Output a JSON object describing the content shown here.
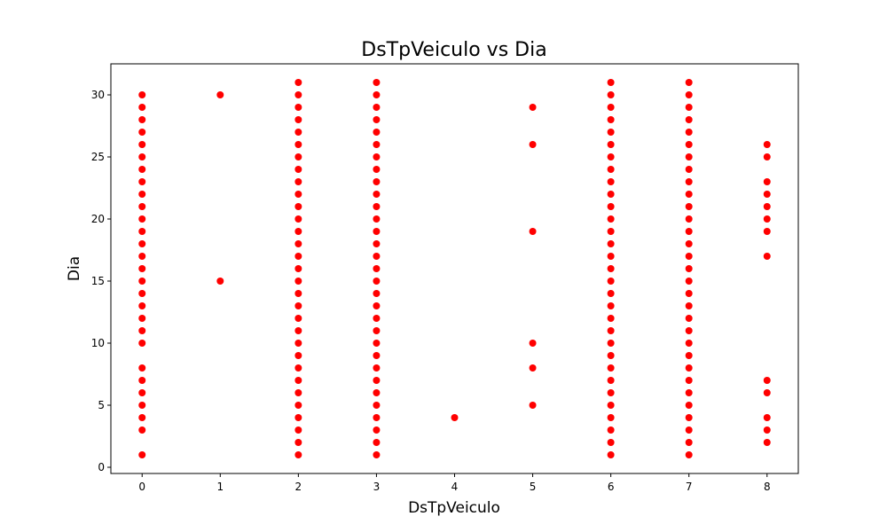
{
  "chart_data": {
    "type": "scatter",
    "title": "DsTpVeiculo vs Dia",
    "xlabel": "DsTpVeiculo",
    "ylabel": "Dia",
    "xlim": [
      -0.4,
      8.4
    ],
    "ylim": [
      -0.5,
      32.5
    ],
    "xticks": [
      0,
      1,
      2,
      3,
      4,
      5,
      6,
      7,
      8
    ],
    "yticks": [
      0,
      5,
      10,
      15,
      20,
      25,
      30
    ],
    "grid": false,
    "marker_color": "#ff0000",
    "series": [
      {
        "points": [
          [
            0,
            1
          ],
          [
            0,
            3
          ],
          [
            0,
            4
          ],
          [
            0,
            5
          ],
          [
            0,
            6
          ],
          [
            0,
            7
          ],
          [
            0,
            8
          ],
          [
            0,
            10
          ],
          [
            0,
            11
          ],
          [
            0,
            12
          ],
          [
            0,
            13
          ],
          [
            0,
            14
          ],
          [
            0,
            15
          ],
          [
            0,
            16
          ],
          [
            0,
            17
          ],
          [
            0,
            18
          ],
          [
            0,
            19
          ],
          [
            0,
            20
          ],
          [
            0,
            21
          ],
          [
            0,
            22
          ],
          [
            0,
            23
          ],
          [
            0,
            24
          ],
          [
            0,
            25
          ],
          [
            0,
            26
          ],
          [
            0,
            27
          ],
          [
            0,
            28
          ],
          [
            0,
            29
          ],
          [
            0,
            30
          ],
          [
            1,
            15
          ],
          [
            1,
            30
          ],
          [
            2,
            1
          ],
          [
            2,
            2
          ],
          [
            2,
            3
          ],
          [
            2,
            4
          ],
          [
            2,
            5
          ],
          [
            2,
            6
          ],
          [
            2,
            7
          ],
          [
            2,
            8
          ],
          [
            2,
            9
          ],
          [
            2,
            10
          ],
          [
            2,
            11
          ],
          [
            2,
            12
          ],
          [
            2,
            13
          ],
          [
            2,
            14
          ],
          [
            2,
            15
          ],
          [
            2,
            16
          ],
          [
            2,
            17
          ],
          [
            2,
            18
          ],
          [
            2,
            19
          ],
          [
            2,
            20
          ],
          [
            2,
            21
          ],
          [
            2,
            22
          ],
          [
            2,
            23
          ],
          [
            2,
            24
          ],
          [
            2,
            25
          ],
          [
            2,
            26
          ],
          [
            2,
            27
          ],
          [
            2,
            28
          ],
          [
            2,
            29
          ],
          [
            2,
            30
          ],
          [
            2,
            31
          ],
          [
            3,
            1
          ],
          [
            3,
            2
          ],
          [
            3,
            3
          ],
          [
            3,
            4
          ],
          [
            3,
            5
          ],
          [
            3,
            6
          ],
          [
            3,
            7
          ],
          [
            3,
            8
          ],
          [
            3,
            9
          ],
          [
            3,
            10
          ],
          [
            3,
            11
          ],
          [
            3,
            12
          ],
          [
            3,
            13
          ],
          [
            3,
            14
          ],
          [
            3,
            15
          ],
          [
            3,
            16
          ],
          [
            3,
            17
          ],
          [
            3,
            18
          ],
          [
            3,
            19
          ],
          [
            3,
            20
          ],
          [
            3,
            21
          ],
          [
            3,
            22
          ],
          [
            3,
            23
          ],
          [
            3,
            24
          ],
          [
            3,
            25
          ],
          [
            3,
            26
          ],
          [
            3,
            27
          ],
          [
            3,
            28
          ],
          [
            3,
            29
          ],
          [
            3,
            30
          ],
          [
            3,
            31
          ],
          [
            4,
            4
          ],
          [
            5,
            5
          ],
          [
            5,
            8
          ],
          [
            5,
            10
          ],
          [
            5,
            19
          ],
          [
            5,
            26
          ],
          [
            5,
            29
          ],
          [
            6,
            1
          ],
          [
            6,
            2
          ],
          [
            6,
            3
          ],
          [
            6,
            4
          ],
          [
            6,
            5
          ],
          [
            6,
            6
          ],
          [
            6,
            7
          ],
          [
            6,
            8
          ],
          [
            6,
            9
          ],
          [
            6,
            10
          ],
          [
            6,
            11
          ],
          [
            6,
            12
          ],
          [
            6,
            13
          ],
          [
            6,
            14
          ],
          [
            6,
            15
          ],
          [
            6,
            16
          ],
          [
            6,
            17
          ],
          [
            6,
            18
          ],
          [
            6,
            19
          ],
          [
            6,
            20
          ],
          [
            6,
            21
          ],
          [
            6,
            22
          ],
          [
            6,
            23
          ],
          [
            6,
            24
          ],
          [
            6,
            25
          ],
          [
            6,
            26
          ],
          [
            6,
            27
          ],
          [
            6,
            28
          ],
          [
            6,
            29
          ],
          [
            6,
            30
          ],
          [
            6,
            31
          ],
          [
            7,
            1
          ],
          [
            7,
            2
          ],
          [
            7,
            3
          ],
          [
            7,
            4
          ],
          [
            7,
            5
          ],
          [
            7,
            6
          ],
          [
            7,
            7
          ],
          [
            7,
            8
          ],
          [
            7,
            9
          ],
          [
            7,
            10
          ],
          [
            7,
            11
          ],
          [
            7,
            12
          ],
          [
            7,
            13
          ],
          [
            7,
            14
          ],
          [
            7,
            15
          ],
          [
            7,
            16
          ],
          [
            7,
            17
          ],
          [
            7,
            18
          ],
          [
            7,
            19
          ],
          [
            7,
            20
          ],
          [
            7,
            21
          ],
          [
            7,
            22
          ],
          [
            7,
            23
          ],
          [
            7,
            24
          ],
          [
            7,
            25
          ],
          [
            7,
            26
          ],
          [
            7,
            27
          ],
          [
            7,
            28
          ],
          [
            7,
            29
          ],
          [
            7,
            30
          ],
          [
            7,
            31
          ],
          [
            8,
            2
          ],
          [
            8,
            3
          ],
          [
            8,
            4
          ],
          [
            8,
            6
          ],
          [
            8,
            7
          ],
          [
            8,
            17
          ],
          [
            8,
            19
          ],
          [
            8,
            20
          ],
          [
            8,
            21
          ],
          [
            8,
            22
          ],
          [
            8,
            23
          ],
          [
            8,
            25
          ],
          [
            8,
            26
          ]
        ]
      }
    ]
  }
}
